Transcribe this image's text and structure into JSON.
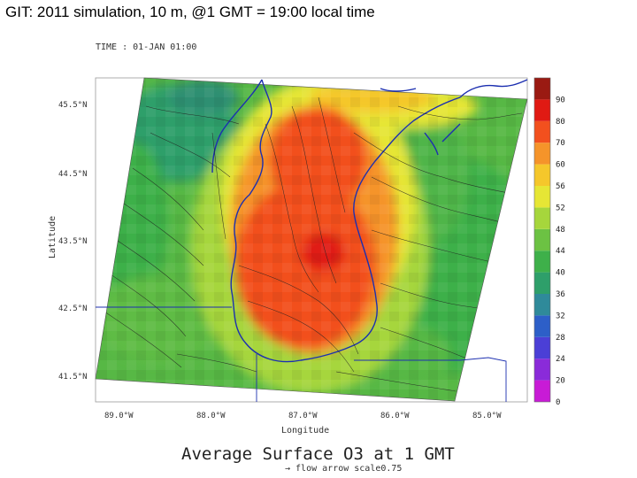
{
  "slide": {
    "title": "GIT: 2011 simulation, 10 m, @1 GMT = 19:00 local time"
  },
  "chart_data": {
    "type": "heatmap",
    "title": "Average Surface O3 at 1 GMT",
    "time_label": "TIME : 01-JAN 01:00",
    "subtitle": "→ flow arrow scale0.75",
    "xlabel": "Longitude",
    "ylabel": "Latitude",
    "x_ticks": [
      "89.0°W",
      "88.0°W",
      "87.0°W",
      "86.0°W",
      "85.0°W"
    ],
    "x_values": [
      -89,
      -88,
      -87,
      -86,
      -85
    ],
    "y_ticks": [
      "45.5°N",
      "44.5°N",
      "43.5°N",
      "42.5°N",
      "41.5°N"
    ],
    "y_values": [
      45.5,
      44.5,
      43.5,
      42.5,
      41.5
    ],
    "colorbar": {
      "levels": [
        0,
        20,
        24,
        28,
        32,
        36,
        40,
        44,
        48,
        52,
        56,
        60,
        70,
        80,
        90
      ],
      "labels": [
        "0",
        "20",
        "24",
        "28",
        "32",
        "36",
        "40",
        "44",
        "48",
        "52",
        "56",
        "60",
        "70",
        "80",
        "90"
      ],
      "colors": [
        "#c81bd6",
        "#8a2bd9",
        "#4b3fd6",
        "#2d5fc8",
        "#2f8a9a",
        "#2e9f6a",
        "#3eb04a",
        "#6cc243",
        "#a6d63c",
        "#e6e635",
        "#f5c72b",
        "#f5942a",
        "#f2501e",
        "#e01a13",
        "#9a1a12"
      ]
    },
    "field_description": "Surface O3 peaks (60-80) over Lake Michigan, ~44-52 along shores, ~36-44 inland",
    "grid": false
  }
}
